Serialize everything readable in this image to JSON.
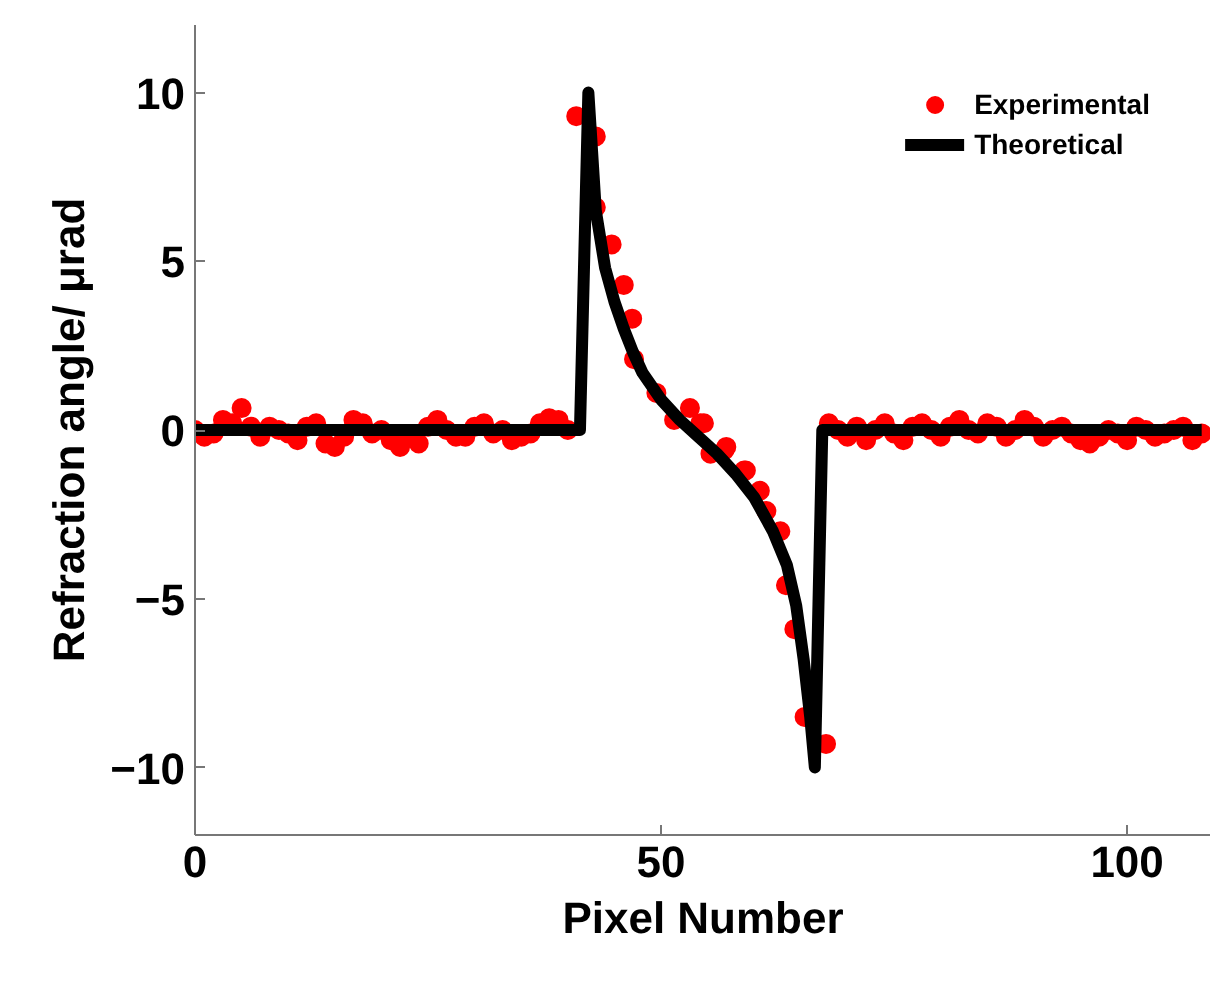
{
  "chart_data": {
    "type": "line",
    "xlabel": "Pixel Number",
    "ylabel": "Refraction angle/ μrad",
    "xlim": [
      0,
      109
    ],
    "ylim": [
      -12,
      12
    ],
    "xticks": [
      0,
      50,
      100
    ],
    "yticks": [
      -10,
      -5,
      0,
      5,
      10
    ],
    "grid": false,
    "legend": "top right",
    "series": [
      {
        "name": "Experimental",
        "type": "scatter",
        "marker": "circle",
        "color": "#ff0000",
        "x": [
          0,
          1,
          2,
          3,
          4,
          5,
          6,
          7,
          8,
          9,
          10,
          11,
          12,
          13,
          14,
          15,
          16,
          17,
          18,
          19,
          20,
          21,
          22,
          23,
          24,
          25,
          26,
          27,
          28,
          29,
          30,
          31,
          32,
          33,
          34,
          35,
          36,
          37,
          38,
          39,
          40,
          40.9,
          43,
          43,
          44.7,
          46,
          46.9,
          47.1,
          49.5,
          51.4,
          53.1,
          54.2,
          54.6,
          55.3,
          56.8,
          57,
          58.9,
          59.1,
          60.6,
          61.3,
          62.8,
          63.4,
          64.3,
          65.4,
          67.7,
          68,
          69,
          70,
          71,
          72,
          73,
          74,
          75,
          76,
          77,
          78,
          79,
          80,
          81,
          82,
          83,
          84,
          85,
          86,
          87,
          88,
          89,
          90,
          91,
          92,
          93,
          94,
          95,
          96,
          97,
          98,
          99,
          100,
          101,
          102,
          103,
          104,
          105,
          106,
          107,
          108
        ],
        "values": [
          0,
          -0.2,
          -0.1,
          0.3,
          0.2,
          0.65,
          0.1,
          -0.2,
          0.1,
          0,
          -0.1,
          -0.3,
          0.1,
          0.2,
          -0.4,
          -0.5,
          -0.2,
          0.3,
          0.2,
          -0.1,
          0,
          -0.3,
          -0.5,
          -0.2,
          -0.4,
          0.1,
          0.3,
          0,
          -0.2,
          -0.2,
          0.1,
          0.2,
          -0.1,
          0,
          -0.3,
          -0.2,
          -0.1,
          0.2,
          0.35,
          0.3,
          0,
          9.3,
          8.7,
          6.6,
          5.5,
          4.3,
          3.3,
          2.1,
          1.1,
          0.3,
          0.65,
          0.2,
          0.2,
          -0.7,
          -0.6,
          -0.5,
          -1.2,
          -1.2,
          -1.8,
          -2.4,
          -3,
          -4.6,
          -5.9,
          -8.5,
          -9.3,
          0.2,
          0,
          -0.2,
          0.1,
          -0.3,
          0,
          0.2,
          -0.1,
          -0.3,
          0.1,
          0.2,
          0,
          -0.2,
          0.1,
          0.3,
          0,
          -0.1,
          0.2,
          0.1,
          -0.2,
          0,
          0.3,
          0.1,
          -0.2,
          0,
          0.1,
          -0.1,
          -0.3,
          -0.4,
          -0.2,
          0,
          -0.1,
          -0.3,
          0.1,
          0,
          -0.2,
          -0.1,
          0,
          0.1,
          -0.3,
          -0.1
        ]
      },
      {
        "name": "Theoretical",
        "type": "line",
        "color": "#000000",
        "x": [
          0,
          41.3,
          42.2,
          43,
          44,
          45,
          46,
          47,
          48,
          50,
          52,
          54,
          56,
          58,
          60,
          62,
          63.5,
          64.5,
          65.3,
          66,
          66.5,
          67.3,
          108
        ],
        "values": [
          0,
          0,
          10,
          6.5,
          4.8,
          3.8,
          3,
          2.3,
          1.7,
          0.9,
          0.3,
          -0.2,
          -0.7,
          -1.3,
          -2,
          -3,
          -4,
          -5.2,
          -6.8,
          -8.5,
          -10,
          0,
          0
        ]
      }
    ]
  }
}
